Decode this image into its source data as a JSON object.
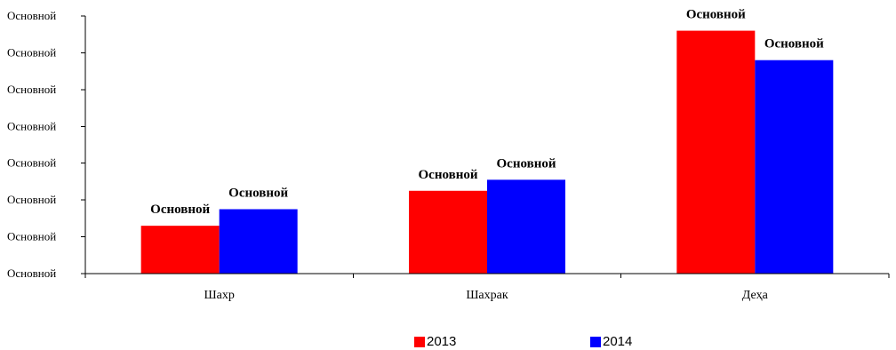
{
  "chart_data": {
    "type": "bar",
    "title": "",
    "xlabel": "",
    "ylabel": "",
    "categories": [
      "Шахр",
      "Шахрак",
      "Деҳа"
    ],
    "y_tick_labels": [
      "Основной",
      "Основной",
      "Основной",
      "Основной",
      "Основной",
      "Основной",
      "Основной",
      "Основной"
    ],
    "ylim": [
      0,
      7
    ],
    "series": [
      {
        "name": "2013",
        "color": "#ff0000",
        "values": [
          1.3,
          2.25,
          6.6
        ],
        "data_labels": [
          "Основной",
          "Основной",
          "Основной"
        ]
      },
      {
        "name": "2014",
        "color": "#0000ff",
        "values": [
          1.75,
          2.55,
          5.8
        ],
        "data_labels": [
          "Основной",
          "Основной",
          "Основной"
        ]
      }
    ],
    "grid": false,
    "legend_position": "bottom"
  }
}
